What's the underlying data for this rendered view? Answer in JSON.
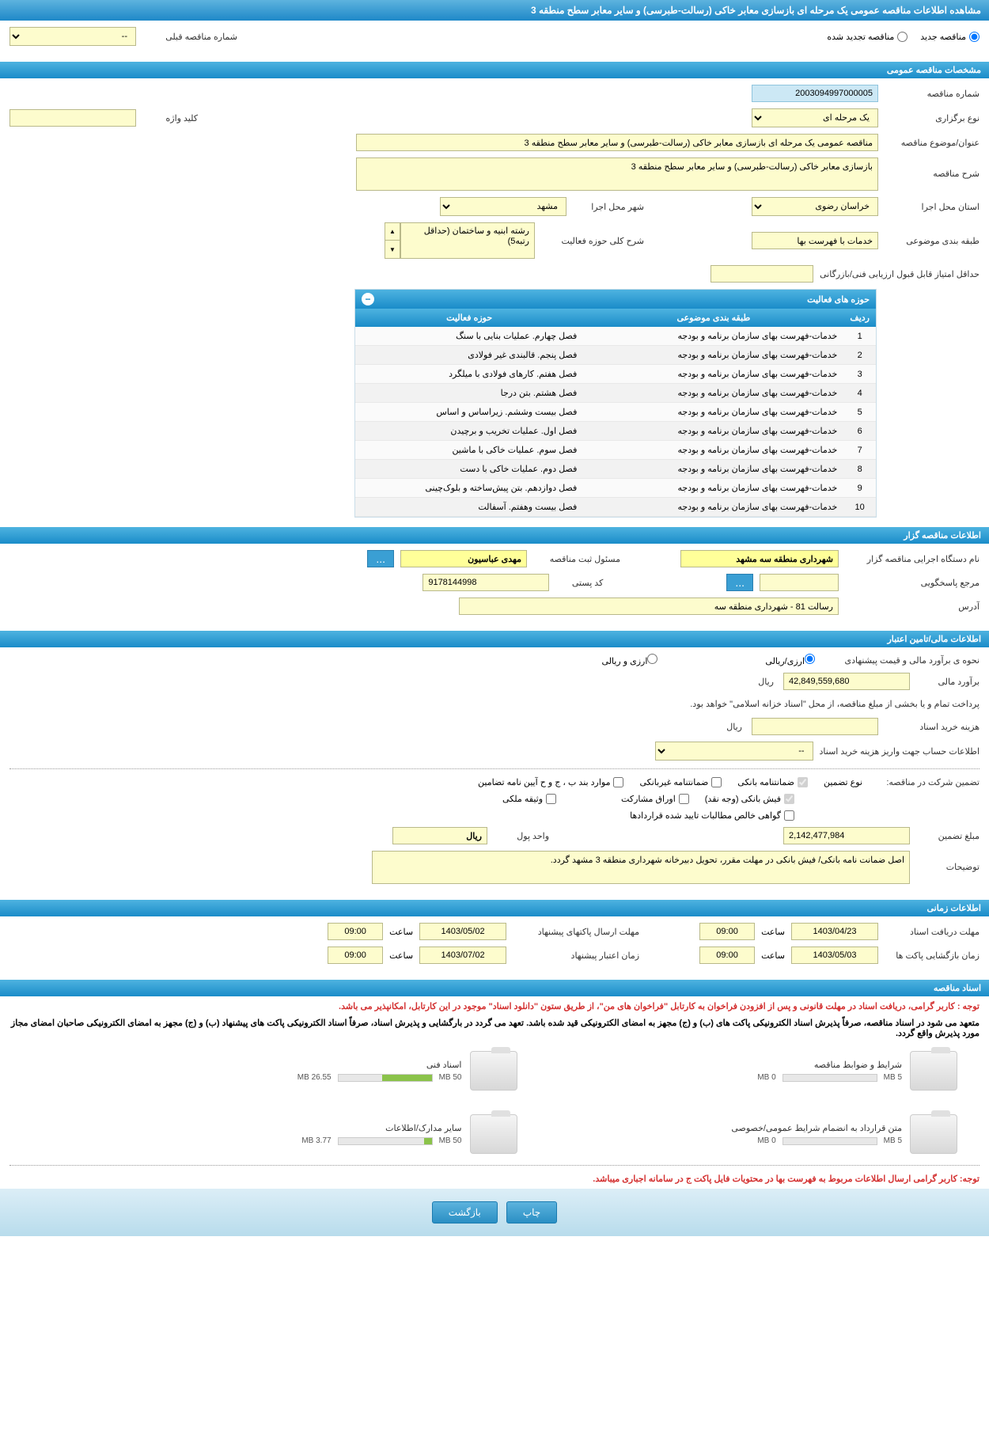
{
  "page_title": "مشاهده اطلاعات مناقصه عمومی یک مرحله ای بازسازی معابر خاکی (رسالت-طبرسی) و سایر معابر سطح منطقه 3",
  "radio_new": "مناقصه جدید",
  "radio_renewed": "مناقصه تجدید شده",
  "prev_number_label": "شماره مناقصه قبلی",
  "prev_number_value": "--",
  "sec_general": "مشخصات مناقصه عمومی",
  "tender_no_label": "شماره مناقصه",
  "tender_no": "2003094997000005",
  "hold_type_label": "نوع برگزاری",
  "hold_type": "یک مرحله ای",
  "keyword_label": "کلید واژه",
  "subject_label": "عنوان/موضوع مناقصه",
  "subject": "مناقصه عمومی یک مرحله ای بازسازی معابر خاکی (رسالت-طبرسی) و سایر معابر سطح منطقه 3",
  "desc_label": "شرح مناقصه",
  "desc": "بازسازی معابر خاکی (رسالت-طبرسی) و سایر معابر سطح منطقه 3",
  "province_label": "استان محل اجرا",
  "province": "خراسان رضوی",
  "city_label": "شهر محل اجرا",
  "city": "مشهد",
  "class_label": "طبقه بندی موضوعی",
  "class": "خدمات با فهرست بها",
  "activity_desc_label": "شرح کلی حوزه فعالیت",
  "activity_desc": "رشته ابنیه و ساختمان (حداقل رتبه5)",
  "min_score_label": "حداقل امتیاز قابل قبول ارزیابی فنی/بازرگانی",
  "table_title": "حوزه های فعالیت",
  "col_num": "ردیف",
  "col_class": "طبقه بندی موضوعی",
  "col_activity": "حوزه فعالیت",
  "rows": [
    {
      "n": "1",
      "c": "خدمات-فهرست بهای سازمان برنامه و بودجه",
      "a": "فصل چهارم. عملیات بنایی با سنگ"
    },
    {
      "n": "2",
      "c": "خدمات-فهرست بهای سازمان برنامه و بودجه",
      "a": "فصل پنجم. قالبندی غیر فولادی"
    },
    {
      "n": "3",
      "c": "خدمات-فهرست بهای سازمان برنامه و بودجه",
      "a": "فصل هفتم. کارهای فولادی با میلگرد"
    },
    {
      "n": "4",
      "c": "خدمات-فهرست بهای سازمان برنامه و بودجه",
      "a": "فصل هشتم. بتن درجا"
    },
    {
      "n": "5",
      "c": "خدمات-فهرست بهای سازمان برنامه و بودجه",
      "a": "فصل بیست وششم. زیراساس و اساس"
    },
    {
      "n": "6",
      "c": "خدمات-فهرست بهای سازمان برنامه و بودجه",
      "a": "فصل اول. عملیات تخریب و برچیدن"
    },
    {
      "n": "7",
      "c": "خدمات-فهرست بهای سازمان برنامه و بودجه",
      "a": "فصل سوم. عملیات خاکی با ماشین"
    },
    {
      "n": "8",
      "c": "خدمات-فهرست بهای سازمان برنامه و بودجه",
      "a": "فصل دوم. عملیات خاکی با دست"
    },
    {
      "n": "9",
      "c": "خدمات-فهرست بهای سازمان برنامه و بودجه",
      "a": "فصل دوازدهم. بتن پیش‌ساخته و بلوک‌چینی"
    },
    {
      "n": "10",
      "c": "خدمات-فهرست بهای سازمان برنامه و بودجه",
      "a": "فصل بیست وهفتم. آسفالت"
    }
  ],
  "sec_organizer": "اطلاعات مناقصه گزار",
  "org_name_label": "نام دستگاه اجرایی مناقصه گزار",
  "org_name": "شهرداری منطقه سه مشهد",
  "registrar_label": "مسئول ثبت مناقصه",
  "registrar": "مهدی عباسیون",
  "contact_label": "مرجع پاسخگویی",
  "postal_label": "کد پستی",
  "postal": "9178144998",
  "address_label": "آدرس",
  "address": "رسالت 81 - شهرداری منطقه سه",
  "sec_financial": "اطلاعات مالی/تامین اعتبار",
  "estimate_label": "نحوه ی برآورد مالی و قیمت پیشنهادی",
  "opt_currency_rial": "ارزی/ریالی",
  "opt_currency_only": "ارزی و ریالی",
  "fin_est_label": "برآورد مالی",
  "fin_est": "42,849,559,680",
  "rial": "ریال",
  "payment_note": "پرداخت تمام و یا بخشی از مبلغ مناقصه، از محل \"اسناد خزانه اسلامی\" خواهد بود.",
  "doc_cost_label": "هزینه خرید اسناد",
  "account_label": "اطلاعات حساب جهت واریز هزینه خرید اسناد",
  "account_value": "--",
  "guarantee_intro": "تضمین شرکت در مناقصه:",
  "guarantee_type_label": "نوع تضمین",
  "chk_bank_guarantee": "ضمانتنامه بانکی",
  "chk_nonbank_guarantee": "ضمانتنامه غیربانکی",
  "chk_items": "موارد بند ب ، ج و ح آیین نامه تضامین",
  "chk_bank_receipt": "فیش بانکی (وجه نقد)",
  "chk_participation": "اوراق مشارکت",
  "chk_property": "وثیقه ملکی",
  "chk_certificate": "گواهی خالص مطالبات تایید شده قراردادها",
  "guarantee_amount_label": "مبلغ تضمین",
  "guarantee_amount": "2,142,477,984",
  "currency_unit_label": "واحد پول",
  "currency_unit": "ریال",
  "notes_label": "توضیحات",
  "notes": "اصل ضمانت نامه بانکی/ فیش بانکی در مهلت مقرر، تحویل دبیرخانه شهرداری منطقه 3 مشهد گردد.",
  "sec_time": "اطلاعات زمانی",
  "receive_deadline_label": "مهلت دریافت اسناد",
  "receive_date": "1403/04/23",
  "receive_time": "09:00",
  "send_deadline_label": "مهلت ارسال پاکتهای پیشنهاد",
  "send_date": "1403/05/02",
  "send_time": "09:00",
  "open_label": "زمان بازگشایی پاکت ها",
  "open_date": "1403/05/03",
  "open_time": "09:00",
  "validity_label": "زمان اعتبار پیشنهاد",
  "validity_date": "1403/07/02",
  "validity_time": "09:00",
  "time_label": "ساعت",
  "sec_docs": "اسناد مناقصه",
  "warn1": "توجه : کاربر گرامی، دریافت اسناد در مهلت قانونی و پس از افزودن فراخوان به کارتابل \"فراخوان های من\"، از طریق ستون \"دانلود اسناد\" موجود در این کارتابل، امکانپذیر می باشد.",
  "warn2": "متعهد می شود در اسناد مناقصه، صرفاً پذیرش اسناد الکترونیکی پاکت های (ب) و (ج) مجهز به امضای الکترونیکی قید شده باشد. تعهد می گردد در بارگشایی و پذیرش اسناد، صرفاً اسناد الکترونیکی پاکت های پیشنهاد (ب) و (ج) مجهز به امضای الکترونیکی صاحبان امضای مجاز مورد پذیرش واقع گردد.",
  "doc1_title": "شرایط و ضوابط مناقصه",
  "doc1_used": "0 MB",
  "doc1_total": "5 MB",
  "doc1_pct": 0,
  "doc2_title": "اسناد فنی",
  "doc2_used": "26.55 MB",
  "doc2_total": "50 MB",
  "doc2_pct": 53,
  "doc3_title": "متن قرارداد به انضمام شرایط عمومی/خصوصی",
  "doc3_used": "0 MB",
  "doc3_total": "5 MB",
  "doc3_pct": 0,
  "doc4_title": "سایر مدارک/اطلاعات",
  "doc4_used": "3.77 MB",
  "doc4_total": "50 MB",
  "doc4_pct": 8,
  "warn3": "توجه: کاربر گرامی ارسال اطلاعات مربوط به فهرست بها در محتویات فایل پاکت ج در سامانه اجباری میباشد.",
  "btn_print": "چاپ",
  "btn_back": "بازگشت",
  "btn_dots": "...",
  "arrow_up": "▲",
  "arrow_down": "▼",
  "collapse": "−"
}
